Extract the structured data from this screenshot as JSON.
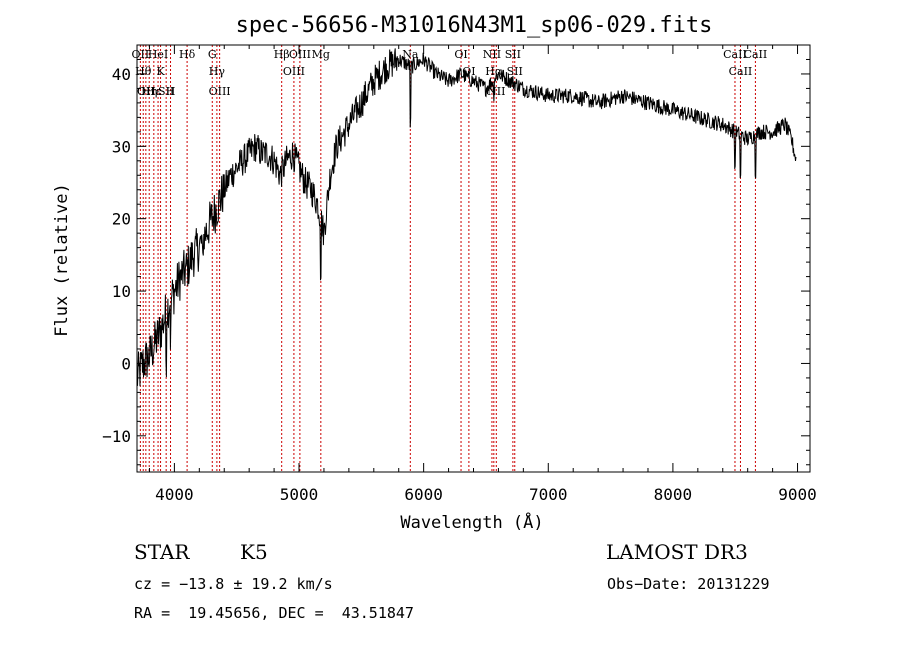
{
  "chart_data": {
    "type": "line",
    "title": "spec-56656-M31016N43M1_sp06-029.fits",
    "xlabel": "Wavelength (Å)",
    "ylabel": "Flux (relative)",
    "xlim": [
      3700,
      9100
    ],
    "ylim": [
      -15,
      44
    ],
    "x_ticks": [
      4000,
      5000,
      6000,
      7000,
      8000,
      9000
    ],
    "y_ticks": [
      -10,
      0,
      10,
      20,
      30,
      40
    ],
    "series": [
      {
        "name": "flux",
        "x": [
          3700,
          3750,
          3800,
          3850,
          3900,
          3950,
          4000,
          4050,
          4100,
          4150,
          4200,
          4250,
          4300,
          4350,
          4400,
          4450,
          4500,
          4550,
          4600,
          4650,
          4700,
          4750,
          4800,
          4850,
          4900,
          4950,
          5000,
          5050,
          5100,
          5150,
          5200,
          5250,
          5300,
          5400,
          5500,
          5600,
          5700,
          5800,
          5900,
          6000,
          6100,
          6200,
          6300,
          6400,
          6500,
          6600,
          6700,
          6800,
          7000,
          7200,
          7400,
          7600,
          7800,
          8000,
          8200,
          8400,
          8500,
          8600,
          8700,
          8800,
          8900,
          8950,
          8990
        ],
        "y": [
          -2,
          0,
          1,
          3,
          5,
          8,
          10,
          12,
          13,
          15,
          16,
          18,
          20,
          22,
          24,
          26,
          27,
          28,
          29,
          30,
          29,
          29,
          28,
          26,
          28,
          29,
          27,
          25,
          24,
          22,
          18,
          26,
          30,
          33,
          36,
          39,
          41,
          42,
          41,
          42,
          40,
          39,
          40,
          39,
          38,
          40,
          39,
          38,
          37,
          37,
          36,
          37,
          36,
          35,
          34,
          33,
          32,
          31,
          32,
          32,
          33,
          31,
          28
        ]
      }
    ],
    "line_markers": [
      {
        "wavelength": 3727,
        "label": "OII"
      },
      {
        "wavelength": 3750,
        "label": "Hθ"
      },
      {
        "wavelength": 3771,
        "label": "OII"
      },
      {
        "wavelength": 3798,
        "label": "Hη"
      },
      {
        "wavelength": 3835,
        "label": "Hε"
      },
      {
        "wavelength": 3869,
        "label": "HeI"
      },
      {
        "wavelength": 3889,
        "label": "K"
      },
      {
        "wavelength": 3934,
        "label": "SII"
      },
      {
        "wavelength": 3969,
        "label": "H"
      },
      {
        "wavelength": 4102,
        "label": "Hδ"
      },
      {
        "wavelength": 4304,
        "label": "G"
      },
      {
        "wavelength": 4341,
        "label": "Hγ"
      },
      {
        "wavelength": 4363,
        "label": "OIII"
      },
      {
        "wavelength": 4861,
        "label": "Hβ"
      },
      {
        "wavelength": 4959,
        "label": "OIII"
      },
      {
        "wavelength": 5007,
        "label": "OIII"
      },
      {
        "wavelength": 5175,
        "label": "Mg"
      },
      {
        "wavelength": 5893,
        "label": "Na"
      },
      {
        "wavelength": 6300,
        "label": "OI"
      },
      {
        "wavelength": 6363,
        "label": "OI"
      },
      {
        "wavelength": 6548,
        "label": "NII"
      },
      {
        "wavelength": 6563,
        "label": "Hα"
      },
      {
        "wavelength": 6583,
        "label": "NII"
      },
      {
        "wavelength": 6716,
        "label": "SII"
      },
      {
        "wavelength": 6731,
        "label": "SII"
      },
      {
        "wavelength": 8498,
        "label": "CaII"
      },
      {
        "wavelength": 8542,
        "label": "CaII"
      },
      {
        "wavelength": 8662,
        "label": "CaII"
      }
    ]
  },
  "info": {
    "class_label": "STAR",
    "subclass": "K5",
    "survey": "LAMOST DR3",
    "cz_text": "cz = −13.8 ± 19.2 km/s",
    "obs_date_text": "Obs−Date: 20131229",
    "coords_text": "RA =  19.45656, DEC =  43.51847"
  },
  "colors": {
    "spectrum": "#000000",
    "marker_line": "#cc0000",
    "axis": "#000000"
  }
}
